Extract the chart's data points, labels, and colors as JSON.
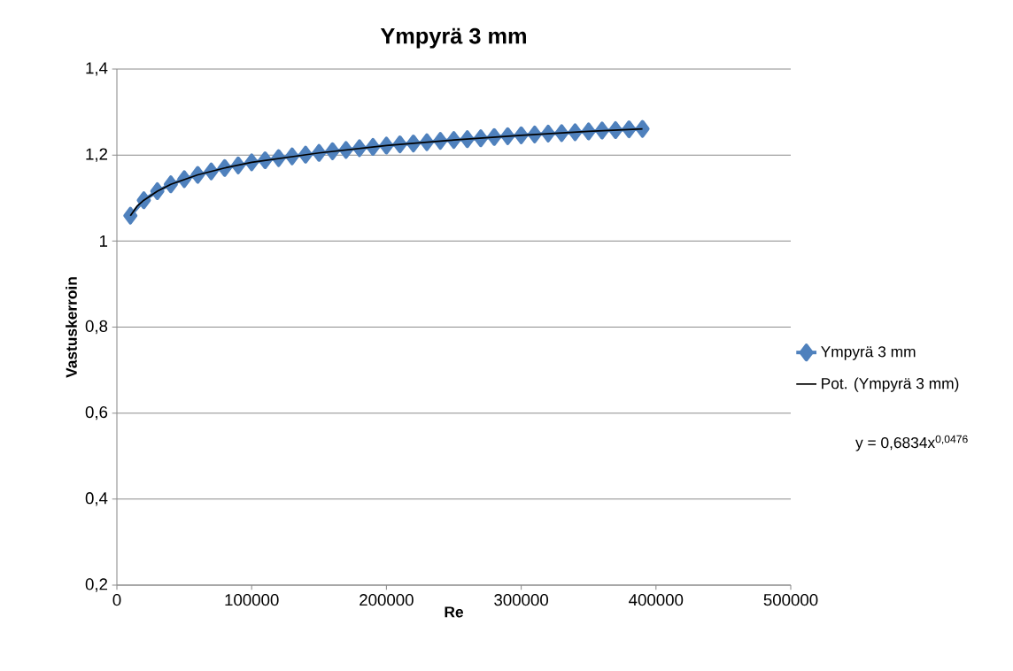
{
  "chart_data": {
    "type": "line",
    "title": "Ympyrä 3 mm",
    "xlabel": "Re",
    "ylabel": "Vastuskerroin",
    "xlim": [
      0,
      500000
    ],
    "xticks": [
      0,
      100000,
      200000,
      300000,
      400000,
      500000
    ],
    "ylim": [
      0.2,
      1.4
    ],
    "yticks": [
      {
        "value": 0.2,
        "label": "0,2"
      },
      {
        "value": 0.4,
        "label": "0,4"
      },
      {
        "value": 0.6,
        "label": "0,6"
      },
      {
        "value": 0.8,
        "label": "0,8"
      },
      1,
      {
        "value": 1.2,
        "label": "1,2"
      },
      {
        "value": 1.4,
        "label": "1,4"
      }
    ],
    "grid": "y",
    "legend": "right",
    "marker": "diamond",
    "line_style": "solid",
    "series": [
      {
        "name": "Ympyrä 3 mm",
        "color": "#4f81bd",
        "x": [
          10000,
          20000,
          30000,
          40000,
          50000,
          60000,
          70000,
          80000,
          90000,
          100000,
          110000,
          120000,
          130000,
          140000,
          150000,
          160000,
          170000,
          180000,
          190000,
          200000,
          210000,
          220000,
          230000,
          240000,
          250000,
          260000,
          270000,
          280000,
          290000,
          300000,
          310000,
          320000,
          330000,
          340000,
          350000,
          360000,
          370000,
          380000,
          390000
        ],
        "values": [
          1.059,
          1.095,
          1.116,
          1.132,
          1.144,
          1.154,
          1.162,
          1.17,
          1.176,
          1.183,
          1.188,
          1.193,
          1.197,
          1.201,
          1.205,
          1.209,
          1.212,
          1.216,
          1.219,
          1.222,
          1.225,
          1.227,
          1.23,
          1.233,
          1.235,
          1.237,
          1.239,
          1.242,
          1.244,
          1.246,
          1.248,
          1.25,
          1.251,
          1.253,
          1.255,
          1.257,
          1.258,
          1.26,
          1.261
        ]
      },
      {
        "name": "Pot. (Ympyrä 3 mm)",
        "type": "line",
        "marker": "none",
        "color": "#000000",
        "x": [
          10000,
          15000,
          20000,
          30000,
          40000,
          60000,
          80000,
          100000,
          150000,
          200000,
          250000,
          300000,
          350000,
          390000
        ],
        "values": [
          1.059,
          1.081,
          1.095,
          1.116,
          1.132,
          1.154,
          1.17,
          1.183,
          1.205,
          1.222,
          1.235,
          1.246,
          1.255,
          1.261
        ]
      }
    ],
    "annotations": [
      "y = 0,6834x$^{0,0476}$"
    ]
  }
}
